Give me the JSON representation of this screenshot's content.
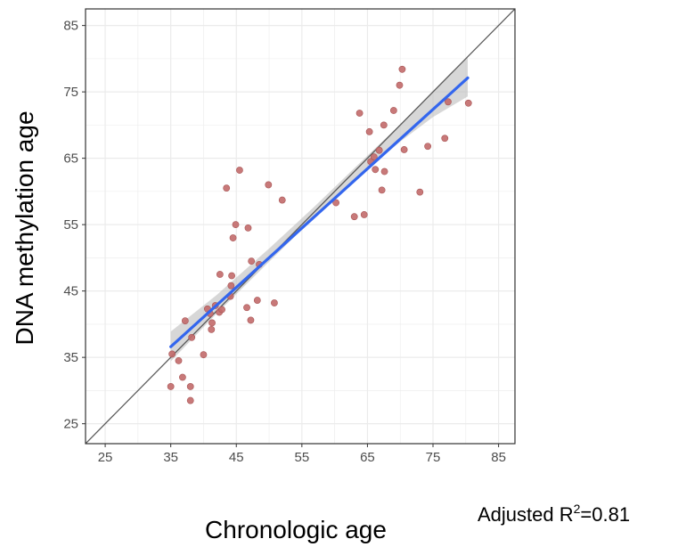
{
  "chart_data": {
    "type": "scatter",
    "title": "",
    "xlabel": "Chronologic age",
    "ylabel": "DNA methylation age",
    "xlim": [
      22,
      87.5
    ],
    "ylim": [
      22,
      87.5
    ],
    "x_ticks": [
      25,
      35,
      45,
      55,
      65,
      75,
      85
    ],
    "y_ticks": [
      25,
      35,
      45,
      55,
      65,
      75,
      85
    ],
    "x_tick_labels": [
      "25",
      "35",
      "45",
      "55",
      "65",
      "75",
      "85"
    ],
    "y_tick_labels": [
      "25",
      "35",
      "45",
      "55",
      "65",
      "75",
      "85"
    ],
    "grid": true,
    "annotation": {
      "prefix": "Adjusted R",
      "superscript": "2",
      "suffix": "=0.81"
    },
    "points": [
      {
        "x": 35.0,
        "y": 30.6
      },
      {
        "x": 35.2,
        "y": 35.5
      },
      {
        "x": 36.2,
        "y": 34.5
      },
      {
        "x": 36.8,
        "y": 32.0
      },
      {
        "x": 37.2,
        "y": 40.5
      },
      {
        "x": 38.0,
        "y": 28.5
      },
      {
        "x": 38.0,
        "y": 30.6
      },
      {
        "x": 38.2,
        "y": 38.0
      },
      {
        "x": 40.0,
        "y": 35.4
      },
      {
        "x": 40.6,
        "y": 42.3
      },
      {
        "x": 41.0,
        "y": 41.6
      },
      {
        "x": 41.2,
        "y": 39.2
      },
      {
        "x": 41.3,
        "y": 40.2
      },
      {
        "x": 41.8,
        "y": 42.8
      },
      {
        "x": 42.4,
        "y": 41.8
      },
      {
        "x": 42.5,
        "y": 47.5
      },
      {
        "x": 42.8,
        "y": 42.2
      },
      {
        "x": 43.5,
        "y": 60.5
      },
      {
        "x": 44.1,
        "y": 44.2
      },
      {
        "x": 44.2,
        "y": 45.8
      },
      {
        "x": 44.3,
        "y": 47.3
      },
      {
        "x": 44.5,
        "y": 53.0
      },
      {
        "x": 44.9,
        "y": 55.0
      },
      {
        "x": 45.5,
        "y": 63.2
      },
      {
        "x": 46.6,
        "y": 42.5
      },
      {
        "x": 46.8,
        "y": 54.5
      },
      {
        "x": 47.2,
        "y": 40.6
      },
      {
        "x": 47.3,
        "y": 49.5
      },
      {
        "x": 48.2,
        "y": 43.6
      },
      {
        "x": 48.5,
        "y": 49.0
      },
      {
        "x": 49.9,
        "y": 61.0
      },
      {
        "x": 50.8,
        "y": 43.2
      },
      {
        "x": 52.0,
        "y": 58.7
      },
      {
        "x": 60.2,
        "y": 58.3
      },
      {
        "x": 63.0,
        "y": 56.2
      },
      {
        "x": 63.8,
        "y": 71.8
      },
      {
        "x": 64.5,
        "y": 56.5
      },
      {
        "x": 65.3,
        "y": 69.0
      },
      {
        "x": 65.5,
        "y": 64.5
      },
      {
        "x": 66.0,
        "y": 65.2
      },
      {
        "x": 66.2,
        "y": 63.3
      },
      {
        "x": 66.8,
        "y": 66.2
      },
      {
        "x": 67.2,
        "y": 60.2
      },
      {
        "x": 67.5,
        "y": 70.0
      },
      {
        "x": 67.6,
        "y": 63.0
      },
      {
        "x": 69.0,
        "y": 72.2
      },
      {
        "x": 69.9,
        "y": 76.0
      },
      {
        "x": 70.3,
        "y": 78.4
      },
      {
        "x": 70.6,
        "y": 66.3
      },
      {
        "x": 73.0,
        "y": 59.9
      },
      {
        "x": 74.2,
        "y": 66.8
      },
      {
        "x": 76.8,
        "y": 68.0
      },
      {
        "x": 77.3,
        "y": 73.5
      },
      {
        "x": 80.4,
        "y": 73.3
      }
    ],
    "identity_line": {
      "from": [
        22,
        22
      ],
      "to": [
        87.5,
        87.5
      ]
    },
    "regression": {
      "from": [
        35.0,
        36.6
      ],
      "to": [
        80.3,
        77.1
      ],
      "ci_band": [
        {
          "x": 35.0,
          "lo": 34.4,
          "hi": 38.9
        },
        {
          "x": 42.0,
          "lo": 41.6,
          "hi": 44.4
        },
        {
          "x": 50.0,
          "lo": 49.4,
          "hi": 51.4
        },
        {
          "x": 57.0,
          "lo": 56.2,
          "hi": 57.8
        },
        {
          "x": 63.0,
          "lo": 61.6,
          "hi": 63.5
        },
        {
          "x": 70.0,
          "lo": 67.5,
          "hi": 70.1
        },
        {
          "x": 75.0,
          "lo": 71.2,
          "hi": 75.0
        },
        {
          "x": 80.3,
          "lo": 74.3,
          "hi": 80.2
        }
      ]
    },
    "colors": {
      "point_fill": "#c26a6a",
      "point_stroke": "#a85555",
      "regression_line": "#3366ee",
      "ci_band": "#bdbdbd",
      "identity_line": "#5a5a5a",
      "grid": "#ebebeb",
      "panel_border": "#333333"
    }
  }
}
